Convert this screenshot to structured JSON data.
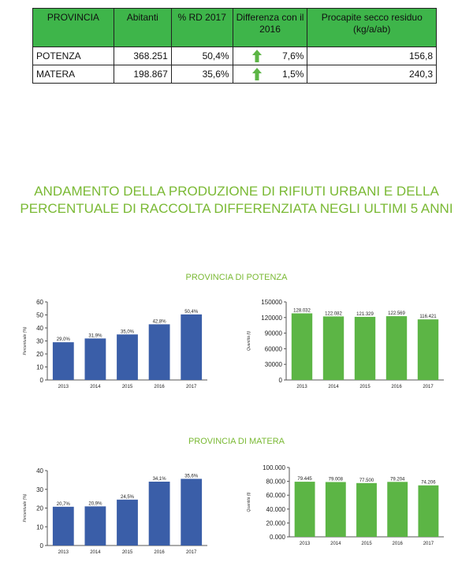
{
  "table": {
    "headers": [
      "PROVINCIA",
      "Abitanti",
      "% RD 2017",
      "Differenza con il 2016",
      "Procapite secco residuo (kg/a/ab)"
    ],
    "rows": [
      {
        "provincia": "POTENZA",
        "abitanti": "368.251",
        "rd": "50,4%",
        "diff": "7,6%",
        "procapite": "156,8"
      },
      {
        "provincia": "MATERA",
        "abitanti": "198.867",
        "rd": "35,6%",
        "diff": "1,5%",
        "procapite": "240,3"
      }
    ]
  },
  "heading": {
    "line1": "ANDAMENTO DELLA PRODUZIONE DI RIFIUTI URBANI E DELLA",
    "line2": "PERCENTUALE DI RACCOLTA DIFFERENZIATA NEGLI ULTIMI 5 ANNI"
  },
  "sections": {
    "potenza": "PROVINCIA DI POTENZA",
    "matera": "PROVINCIA DI MATERA"
  },
  "colors": {
    "green_header": "#3eb54a",
    "heading": "#7ab934",
    "blue_bar": "#3a5ea8",
    "green_bar": "#5cb545",
    "arrow": "#5cb545"
  },
  "chart_data": [
    {
      "type": "bar",
      "categories": [
        "2013",
        "2014",
        "2015",
        "2016",
        "2017"
      ],
      "values": [
        29.0,
        31.9,
        35.0,
        42.8,
        50.4
      ],
      "data_labels": [
        "29,0%",
        "31,9%",
        "35,0%",
        "42,8%",
        "50,4%"
      ],
      "ylabel": "Percentuale (%)",
      "ylim": [
        0,
        60
      ],
      "yticks": [
        "0",
        "10",
        "20",
        "30",
        "40",
        "50",
        "60"
      ],
      "color": "#3a5ea8"
    },
    {
      "type": "bar",
      "categories": [
        "2013",
        "2014",
        "2015",
        "2016",
        "2017"
      ],
      "values": [
        128032,
        122082,
        121329,
        122569,
        116421
      ],
      "data_labels": [
        "128.032",
        "122.082",
        "121.329",
        "122.569",
        "116.421"
      ],
      "ylabel": "Quantità (t)",
      "ylim": [
        0,
        150000
      ],
      "yticks": [
        "0",
        "30000",
        "60000",
        "90000",
        "120000",
        "150000"
      ],
      "color": "#5cb545"
    },
    {
      "type": "bar",
      "categories": [
        "2013",
        "2014",
        "2015",
        "2016",
        "2017"
      ],
      "values": [
        20.7,
        20.9,
        24.5,
        34.1,
        35.6
      ],
      "data_labels": [
        "20,7%",
        "20,9%",
        "24,5%",
        "34,1%",
        "35,6%"
      ],
      "ylabel": "Percentuale (%)",
      "ylim": [
        0,
        40
      ],
      "yticks": [
        "0",
        "10",
        "20",
        "30",
        "40"
      ],
      "color": "#3a5ea8"
    },
    {
      "type": "bar",
      "categories": [
        "2013",
        "2014",
        "2015",
        "2016",
        "2017"
      ],
      "values": [
        79445,
        79008,
        77500,
        79204,
        74206
      ],
      "data_labels": [
        "79.445",
        "79.008",
        "77.500",
        "79.204",
        "74.206"
      ],
      "ylabel": "Quantità (t)",
      "ylim": [
        0,
        100000
      ],
      "yticks": [
        "0.000",
        "20.000",
        "40.000",
        "60.000",
        "80.000",
        "100.000"
      ],
      "color": "#5cb545"
    }
  ]
}
